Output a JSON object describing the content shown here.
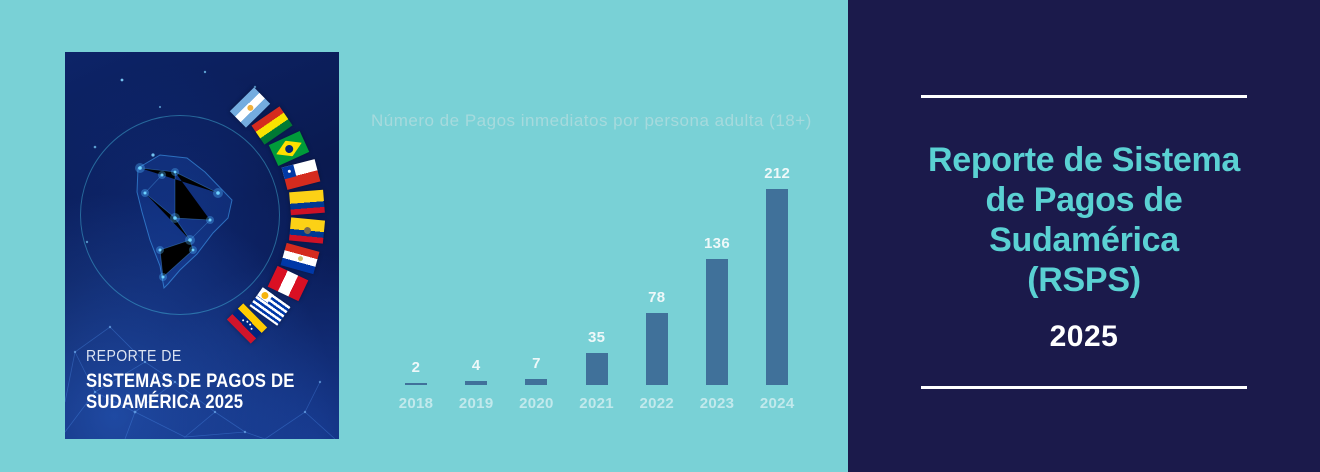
{
  "page": {
    "background": "#79d1d6"
  },
  "cover": {
    "title_lines": [
      "REPORTE DE",
      "SISTEMAS DE PAGOS DE",
      "SUDAMÉRICA 2025"
    ],
    "flags": [
      "argentina",
      "bolivia",
      "brazil",
      "chile",
      "colombia",
      "ecuador",
      "paraguay",
      "peru",
      "uruguay",
      "venezuela"
    ]
  },
  "chart_data": {
    "type": "bar",
    "title": "Número de Pagos inmediatos por persona adulta (18+)",
    "categories": [
      "2018",
      "2019",
      "2020",
      "2021",
      "2022",
      "2023",
      "2024"
    ],
    "values": [
      2,
      4,
      7,
      35,
      78,
      136,
      212
    ],
    "xlabel": "",
    "ylabel": "",
    "ylim": [
      0,
      220
    ],
    "grid": false,
    "legend": "none",
    "bar_color": "#40719a",
    "title_color": "#a6dadd",
    "value_label_color": "#eef8f9",
    "category_label_color": "#c2e9ec"
  },
  "panel": {
    "heading_lines": [
      "Reporte de Sistema",
      "de Pagos de",
      "Sudamérica",
      "(RSPS)"
    ],
    "year": "2025",
    "background": "#1b1a4b",
    "heading_color": "#5ad1d3",
    "year_color": "#ffffff",
    "rule_color": "#ffffff"
  }
}
